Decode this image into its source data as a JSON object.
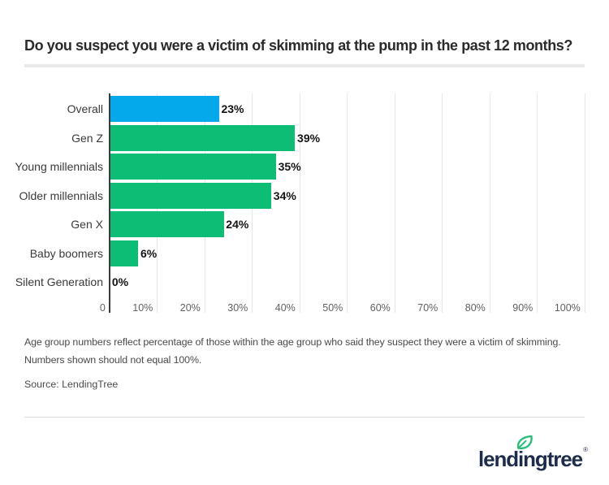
{
  "title": "Do you suspect you were a victim of skimming at the pump in the past 12 months?",
  "chart_data": {
    "type": "bar",
    "orientation": "horizontal",
    "title": "Do you suspect you were a victim of skimming at the pump in the past 12 months?",
    "categories": [
      "Overall",
      "Gen Z",
      "Young millennials",
      "Older millennials",
      "Gen X",
      "Baby boomers",
      "Silent Generation"
    ],
    "values": [
      23,
      39,
      35,
      34,
      24,
      6,
      0
    ],
    "value_labels": [
      "23%",
      "39%",
      "35%",
      "34%",
      "24%",
      "6%",
      "0%"
    ],
    "bar_colors": [
      "#03a9ea",
      "#0dbd75",
      "#0dbd75",
      "#0dbd75",
      "#0dbd75",
      "#0dbd75",
      "#0dbd75"
    ],
    "x_tick_values": [
      0,
      10,
      20,
      30,
      40,
      50,
      60,
      70,
      80,
      90,
      100
    ],
    "x_tick_labels": [
      "0",
      "10%",
      "20%",
      "30%",
      "40%",
      "50%",
      "60%",
      "70%",
      "80%",
      "90%",
      "100%"
    ],
    "xlim": [
      0,
      100
    ],
    "grid": true,
    "legend": "none",
    "xlabel": "",
    "ylabel": ""
  },
  "footnote": {
    "lines": [
      "Age group numbers reflect percentage of those within the age group who said they suspect they were a victim of skimming.",
      "Numbers shown should not equal 100%."
    ]
  },
  "source": "Source: LendingTree",
  "logo": {
    "text": "lendingtree",
    "registered": "®"
  },
  "colors": {
    "overall_bar": "#03a9ea",
    "age_group_bar": "#0dbd75",
    "logo_navy": "#1d2c4b",
    "leaf_green": "#2abd7c"
  }
}
